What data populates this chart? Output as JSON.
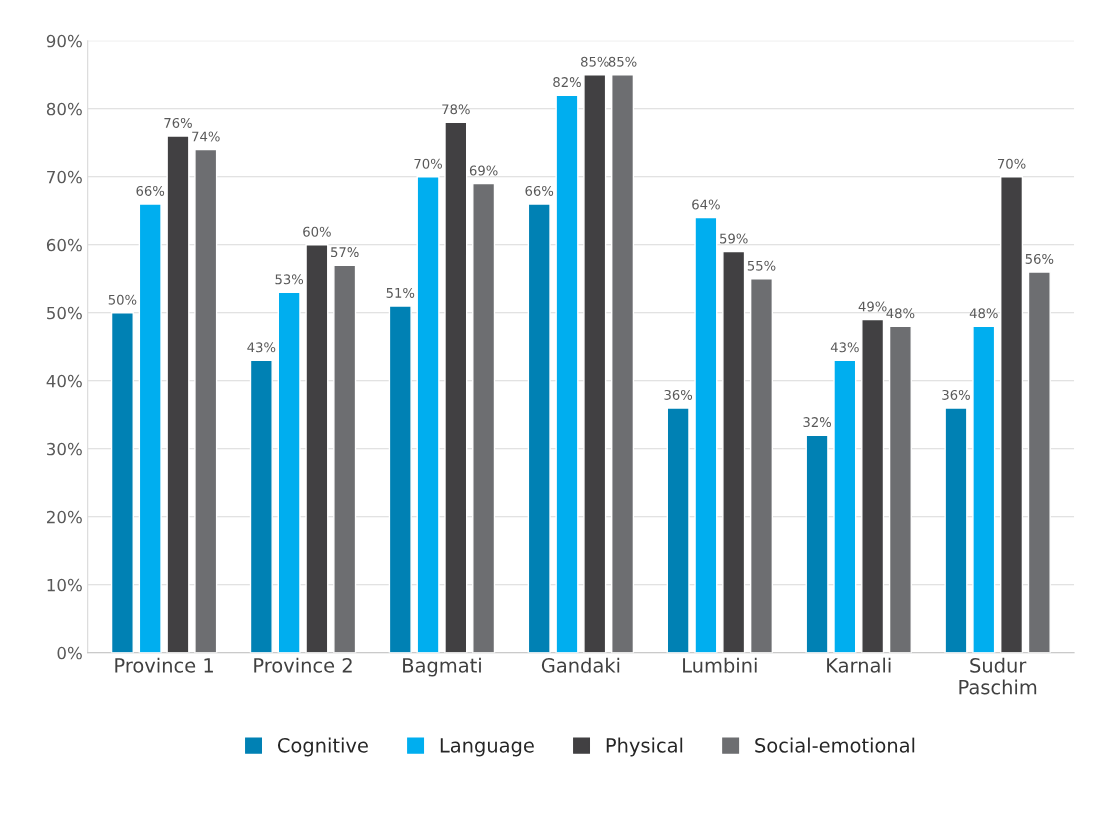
{
  "chart_data": {
    "type": "bar",
    "categories": [
      "Province 1",
      "Province 2",
      "Bagmati",
      "Gandaki",
      "Lumbini",
      "Karnali",
      "Sudur\nPaschim"
    ],
    "series": [
      {
        "name": "Cognitive",
        "color": "#0081b4",
        "values": [
          50,
          43,
          51,
          66,
          36,
          32,
          36
        ],
        "value_labels": [
          "50%",
          "43%",
          "51%",
          "66%",
          "36%",
          "32%",
          "36%"
        ]
      },
      {
        "name": "Language",
        "color": "#00aeef",
        "values": [
          66,
          53,
          70,
          82,
          64,
          43,
          48
        ],
        "value_labels": [
          "66%",
          "53%",
          "70%",
          "82%",
          "64%",
          "43%",
          "48%"
        ]
      },
      {
        "name": "Physical",
        "color": "#414042",
        "values": [
          76,
          60,
          78,
          85,
          59,
          49,
          70
        ],
        "value_labels": [
          "76%",
          "60%",
          "78%",
          "85%",
          "59%",
          "49%",
          "70%"
        ]
      },
      {
        "name": "Social-emotional",
        "color": "#6d6e71",
        "values": [
          74,
          57,
          69,
          85,
          55,
          48,
          56
        ],
        "value_labels": [
          "74%",
          "57%",
          "69%",
          "85%",
          "55%",
          "48%",
          "56%"
        ]
      }
    ],
    "ylim": [
      0,
      90
    ],
    "yticks": [
      {
        "value": 0,
        "label": "0%"
      },
      {
        "value": 10,
        "label": "10%"
      },
      {
        "value": 20,
        "label": "20%"
      },
      {
        "value": 30,
        "label": "30%"
      },
      {
        "value": 40,
        "label": "40%"
      },
      {
        "value": 50,
        "label": "50%"
      },
      {
        "value": 60,
        "label": "60%"
      },
      {
        "value": 70,
        "label": "70%"
      },
      {
        "value": 80,
        "label": "80%"
      },
      {
        "value": 90,
        "label": "90%"
      }
    ],
    "grid": "y",
    "legend": "bottom"
  }
}
